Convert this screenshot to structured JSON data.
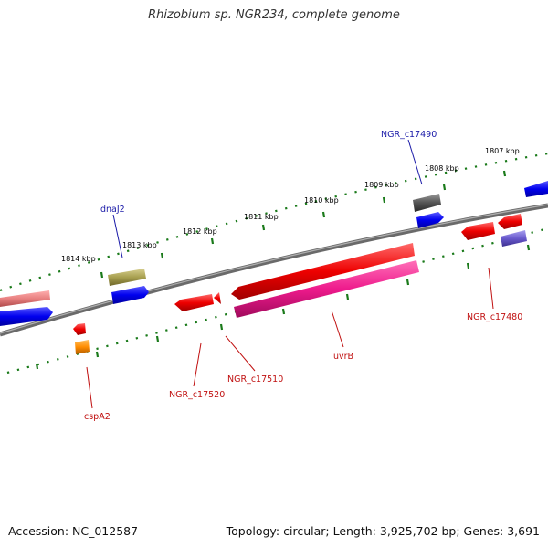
{
  "title": "Rhizobium sp. NGR234, complete genome",
  "footer": {
    "accession": "Accession: NC_012587",
    "summary": "Topology: circular; Length: 3,925,702 bp; Genes: 3,691"
  },
  "ticks": [
    "1814 kbp",
    "1813 kbp",
    "1812 kbp",
    "1811 kbp",
    "1810 kbp",
    "1809 kbp",
    "1808 kbp",
    "1807 kbp"
  ],
  "genes_top": [
    "dnaJ2",
    "NGR_c17490"
  ],
  "genes_bottom": [
    "cspA2",
    "NGR_c17520",
    "NGR_c17510",
    "uvrB",
    "NGR_c17480"
  ],
  "colors": {
    "backbone": "#808080",
    "tick_green": "#1a7a1a",
    "label_blue": "#1a1aa8",
    "label_red": "#c01010",
    "gene_red": "#ee0000",
    "gene_blue": "#0000ee",
    "gene_magenta": "#ee1a8c",
    "gene_olive": "#a8a050",
    "gene_pink": "#e88080",
    "gene_gray": "#555555",
    "gene_slate": "#6a5acd",
    "gene_orange": "#ff8c00"
  }
}
